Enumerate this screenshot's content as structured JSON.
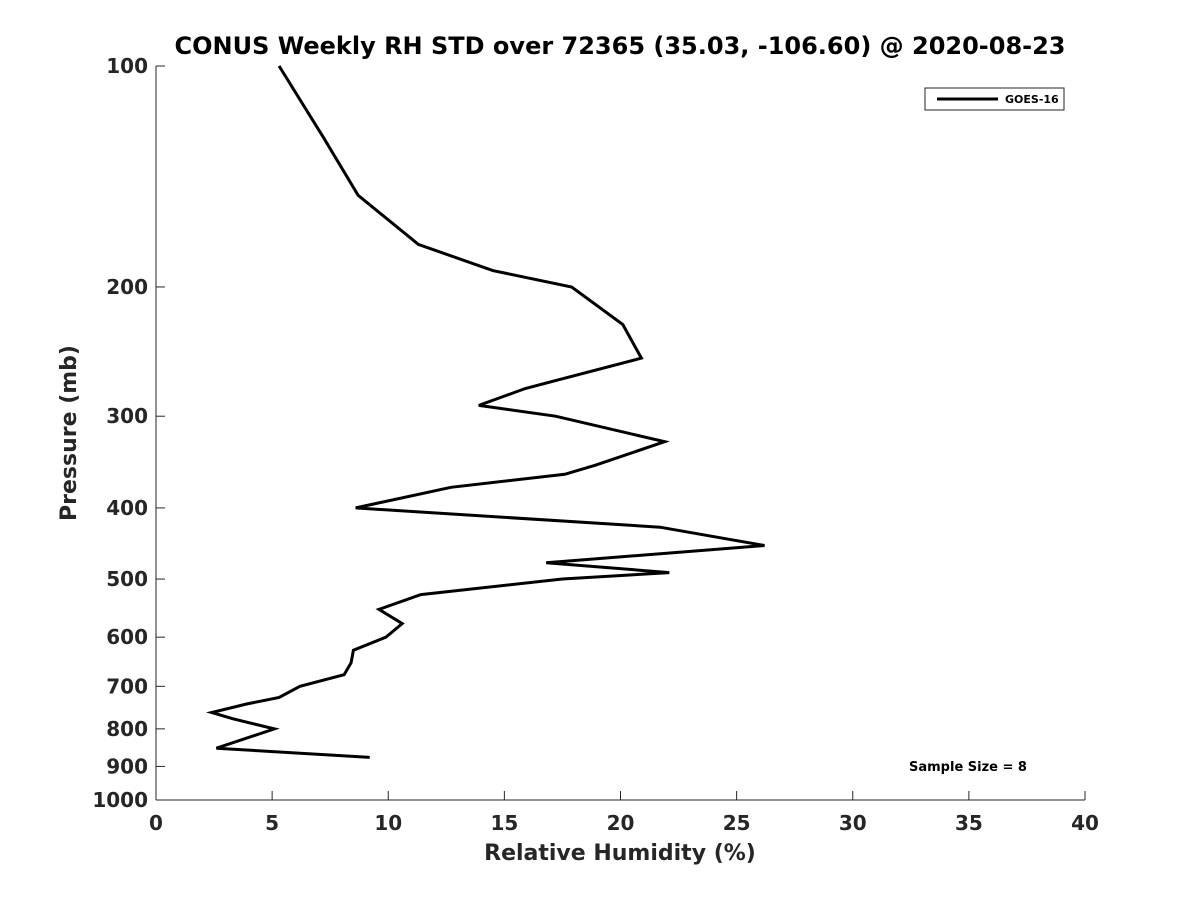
{
  "chart_data": {
    "type": "line",
    "title": "CONUS Weekly RH STD over 72365 (35.03, -106.60) @ 2020-08-23",
    "xlabel": "Relative Humidity (%)",
    "ylabel": "Pressure (mb)",
    "xlim": [
      0,
      40
    ],
    "ylim": [
      100,
      1000
    ],
    "y_scale": "log",
    "y_reversed": true,
    "grid": false,
    "legend_position": "top-right",
    "x_ticks": [
      0,
      5,
      10,
      15,
      20,
      25,
      30,
      35,
      40
    ],
    "y_ticks": [
      100,
      200,
      300,
      400,
      500,
      600,
      700,
      800,
      900,
      1000
    ],
    "series": [
      {
        "name": "GOES-16",
        "color": "#000000",
        "points": [
          {
            "x": 5.3,
            "y": 100
          },
          {
            "x": 7.2,
            "y": 125
          },
          {
            "x": 8.7,
            "y": 150
          },
          {
            "x": 11.3,
            "y": 175
          },
          {
            "x": 14.5,
            "y": 190
          },
          {
            "x": 17.9,
            "y": 200
          },
          {
            "x": 20.1,
            "y": 225
          },
          {
            "x": 20.9,
            "y": 250
          },
          {
            "x": 15.9,
            "y": 275
          },
          {
            "x": 13.9,
            "y": 290
          },
          {
            "x": 17.2,
            "y": 300
          },
          {
            "x": 21.9,
            "y": 325
          },
          {
            "x": 18.9,
            "y": 350
          },
          {
            "x": 17.6,
            "y": 360
          },
          {
            "x": 12.7,
            "y": 375
          },
          {
            "x": 8.6,
            "y": 400
          },
          {
            "x": 21.7,
            "y": 425
          },
          {
            "x": 26.2,
            "y": 450
          },
          {
            "x": 16.8,
            "y": 475
          },
          {
            "x": 22.1,
            "y": 490
          },
          {
            "x": 17.5,
            "y": 500
          },
          {
            "x": 11.4,
            "y": 525
          },
          {
            "x": 9.6,
            "y": 550
          },
          {
            "x": 10.6,
            "y": 575
          },
          {
            "x": 9.9,
            "y": 600
          },
          {
            "x": 8.5,
            "y": 625
          },
          {
            "x": 8.4,
            "y": 650
          },
          {
            "x": 8.1,
            "y": 675
          },
          {
            "x": 6.2,
            "y": 700
          },
          {
            "x": 5.3,
            "y": 725
          },
          {
            "x": 3.9,
            "y": 740
          },
          {
            "x": 2.4,
            "y": 760
          },
          {
            "x": 3.3,
            "y": 775
          },
          {
            "x": 5.1,
            "y": 800
          },
          {
            "x": 2.6,
            "y": 850
          },
          {
            "x": 9.2,
            "y": 875
          }
        ]
      }
    ],
    "annotations": [
      "Sample Size = 8"
    ]
  }
}
